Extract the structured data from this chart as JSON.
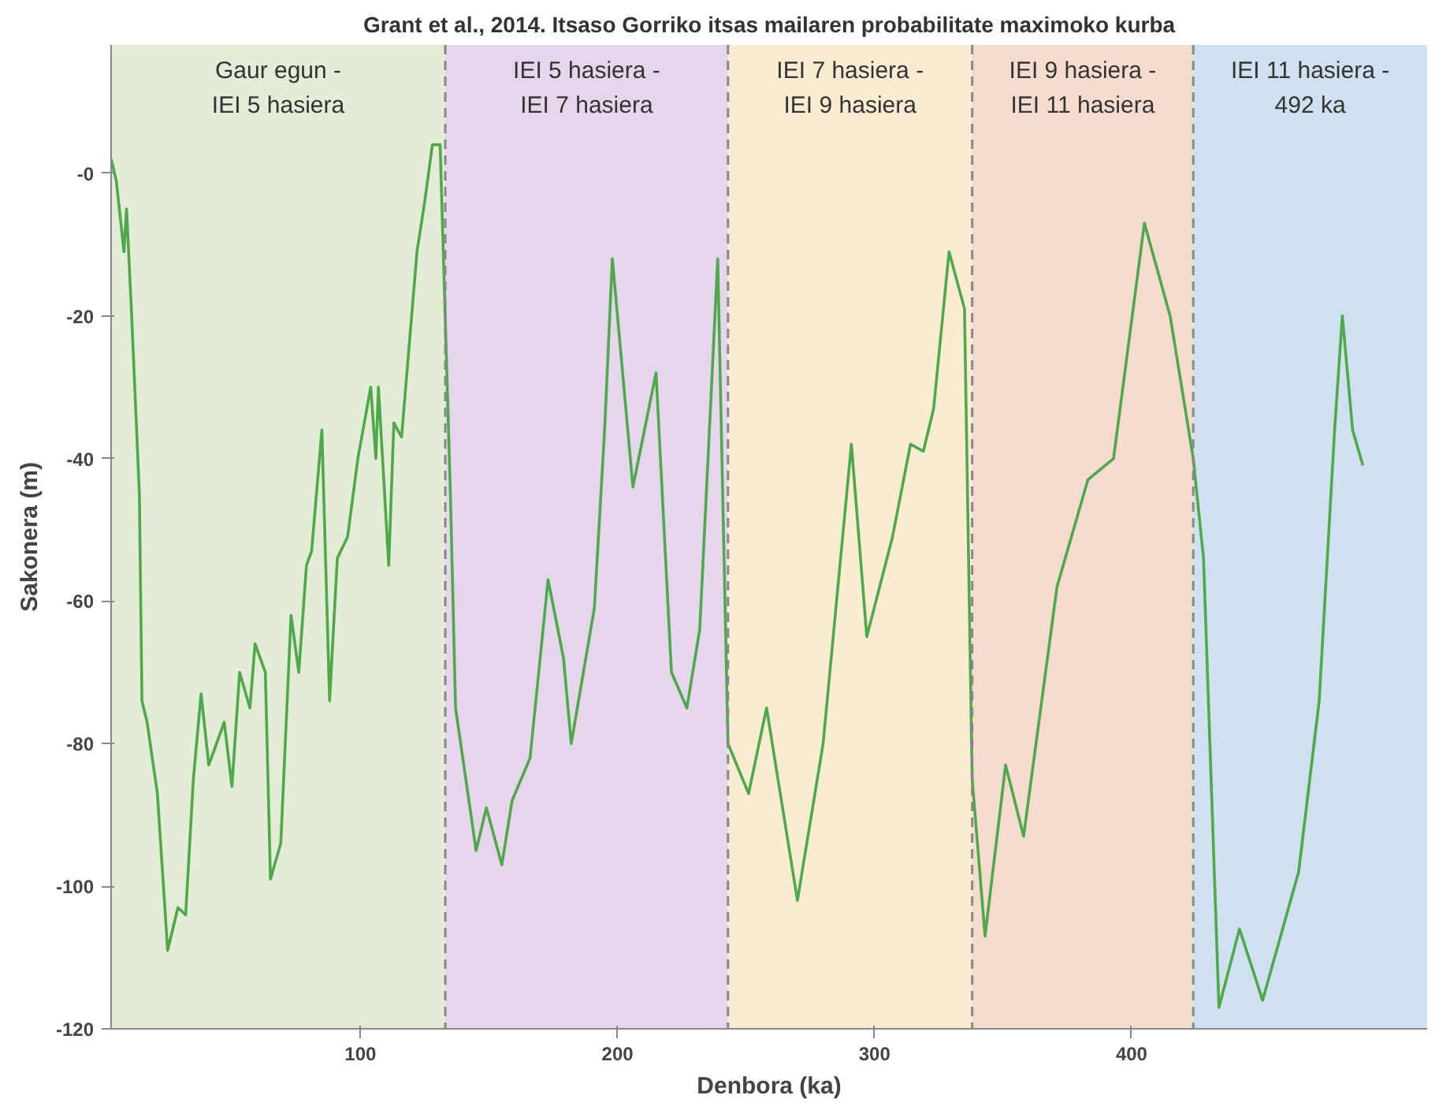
{
  "chart_data": {
    "type": "line",
    "title": "Grant et al., 2014. Itsaso Gorriko itsas mailaren probabilitate maximoko kurba",
    "xlabel": "Denbora (ka)",
    "ylabel": "Sakonera (m)",
    "x": [
      3,
      5,
      8,
      9,
      11,
      14,
      15,
      17,
      21,
      25,
      29,
      32,
      35,
      38,
      41,
      47,
      50,
      53,
      57,
      59,
      63,
      65,
      69,
      73,
      76,
      79,
      81,
      85,
      88,
      91,
      95,
      99,
      104,
      106,
      107,
      111,
      113,
      116,
      122,
      125,
      128,
      131,
      135,
      137,
      145,
      149,
      155,
      159,
      166,
      173,
      179,
      182,
      191,
      195,
      198,
      206,
      215,
      221,
      227,
      232,
      239,
      243,
      251,
      258,
      270,
      280,
      291,
      297,
      307,
      314,
      319,
      323,
      329,
      335,
      338,
      343,
      351,
      358,
      371,
      383,
      393,
      405,
      415,
      424,
      428,
      434,
      442,
      451,
      465,
      473,
      479,
      482,
      486,
      490
    ],
    "series": [
      {
        "color": "#4fa84a",
        "values": [
          2,
          -1,
          -11,
          -5,
          -20,
          -45,
          -74,
          -77,
          -87,
          -109,
          -103,
          -104,
          -85,
          -73,
          -83,
          -77,
          -86,
          -70,
          -75,
          -66,
          -70,
          -99,
          -94,
          -62,
          -70,
          -55,
          -53,
          -36,
          -74,
          -54,
          -51,
          -40,
          -30,
          -40,
          -30,
          -55,
          -35,
          -37,
          -11,
          -4,
          4,
          4,
          -45,
          -75,
          -95,
          -89,
          -97,
          -88,
          -82,
          -57,
          -68,
          -80,
          -61,
          -36,
          -12,
          -44,
          -28,
          -70,
          -75,
          -64,
          -12,
          -80,
          -87,
          -75,
          -102,
          -80,
          -38,
          -65,
          -51,
          -38,
          -39,
          -33,
          -11,
          -19,
          -85,
          -107,
          -83,
          -93,
          -58,
          -43,
          -40,
          -7,
          -20,
          -40,
          -54,
          -117,
          -106,
          -116,
          -98,
          -74,
          -36,
          -20,
          -36,
          -41
        ]
      }
    ],
    "xlim": [
      3,
      515
    ],
    "ylim": [
      -120,
      18
    ],
    "xticks": [
      100,
      200,
      300,
      400
    ],
    "yticks": [
      {
        "value": 0,
        "label": "-0"
      },
      -20,
      -40,
      -60,
      -80,
      -100,
      -120
    ],
    "line_style": "solid",
    "bands": [
      {
        "axis": "x",
        "from": 3,
        "to": 133,
        "label": "Gaur egun -\nIEI 5 hasiera",
        "color": "#e3ecd6"
      },
      {
        "axis": "x",
        "from": 133,
        "to": 243,
        "label": "IEI 5 hasiera -\nIEI 7 hasiera",
        "color": "#e5d6eb"
      },
      {
        "axis": "x",
        "from": 243,
        "to": 338,
        "label": "IEI 7 hasiera -\nIEI 9 hasiera",
        "color": "#f9ecd3"
      },
      {
        "axis": "x",
        "from": 338,
        "to": 424,
        "label": "IEI 9 hasiera -\nIEI 11 hasiera",
        "color": "#f6dccf"
      },
      {
        "axis": "x",
        "from": 424,
        "to": 515,
        "label": "IEI 11 hasiera -\n492 ka",
        "color": "#cfe0f0"
      }
    ],
    "ref_lines": [
      {
        "axis": "x",
        "value": 133,
        "color": "#888888",
        "line_style": "dashed"
      },
      {
        "axis": "x",
        "value": 243,
        "color": "#888888",
        "line_style": "dashed"
      },
      {
        "axis": "x",
        "value": 338,
        "color": "#888888",
        "line_style": "dashed"
      },
      {
        "axis": "x",
        "value": 424,
        "color": "#888888",
        "line_style": "dashed"
      }
    ]
  }
}
